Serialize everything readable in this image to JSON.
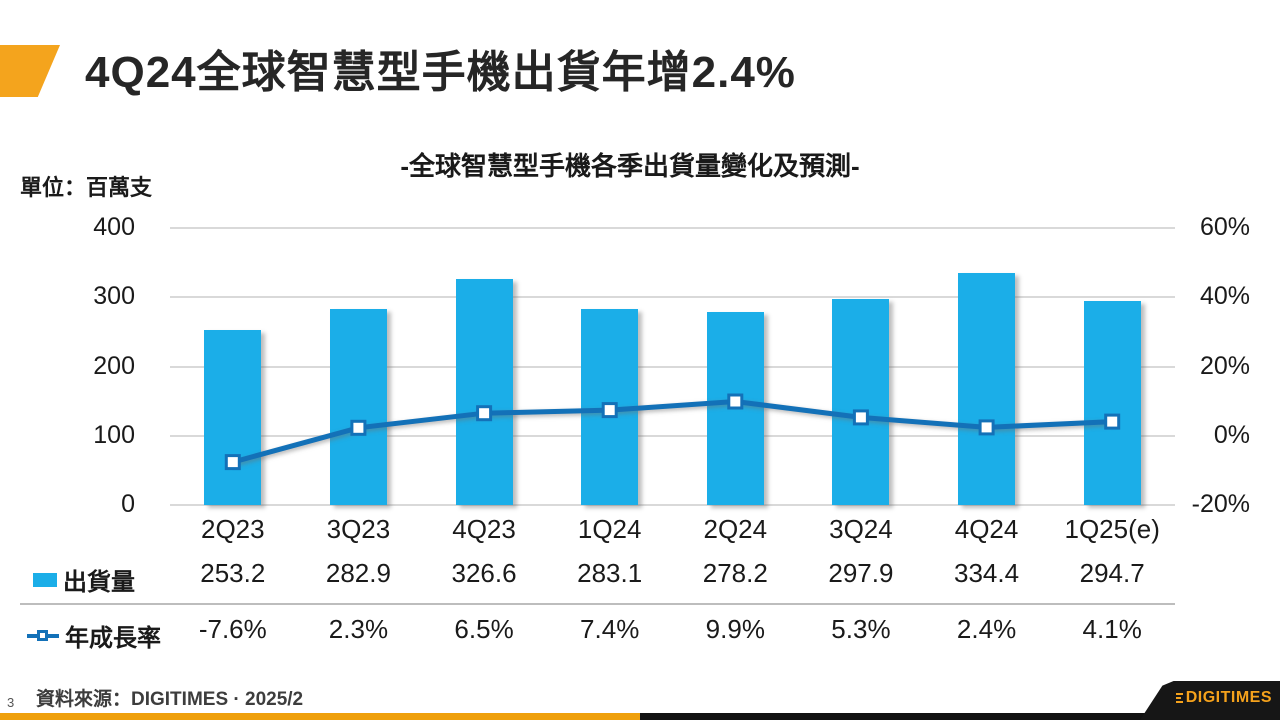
{
  "page": {
    "title": "4Q24全球智慧型手機出貨年增2.4%",
    "page_number": "3",
    "source": "資料來源：DIGITIMES · 2025/2",
    "logo_text": "DIGITIMES"
  },
  "chart_data": {
    "type": "bar+line",
    "title": "-全球智慧型手機各季出貨量變化及預測-",
    "unit_label": "單位：百萬支",
    "categories": [
      "2Q23",
      "3Q23",
      "4Q23",
      "1Q24",
      "2Q24",
      "3Q24",
      "4Q24",
      "1Q25(e)"
    ],
    "series": [
      {
        "name": "出貨量",
        "type": "bar",
        "axis": "left",
        "values": [
          253.2,
          282.9,
          326.6,
          283.1,
          278.2,
          297.9,
          334.4,
          294.7
        ],
        "labels": [
          "253.2",
          "282.9",
          "326.6",
          "283.1",
          "278.2",
          "297.9",
          "334.4",
          "294.7"
        ]
      },
      {
        "name": "年成長率",
        "type": "line",
        "axis": "right",
        "values": [
          -7.6,
          2.3,
          6.5,
          7.4,
          9.9,
          5.3,
          2.4,
          4.1
        ],
        "labels": [
          "-7.6%",
          "2.3%",
          "6.5%",
          "7.4%",
          "9.9%",
          "5.3%",
          "2.4%",
          "4.1%"
        ]
      }
    ],
    "left_axis": {
      "ticks": [
        "400",
        "300",
        "200",
        "100",
        "0"
      ],
      "min": 0,
      "max": 400
    },
    "right_axis": {
      "ticks": [
        "60%",
        "40%",
        "20%",
        "0%",
        "-20%"
      ],
      "min": -20,
      "max": 60
    },
    "grid": true,
    "legend_position": "left-of-table"
  },
  "colors": {
    "bar": "#1BAEE8",
    "line": "#1371B8",
    "accent_orange": "#F4A41D",
    "footer_orange": "#EFA00C",
    "footer_black": "#121212",
    "gridline": "#D9D9D9"
  }
}
